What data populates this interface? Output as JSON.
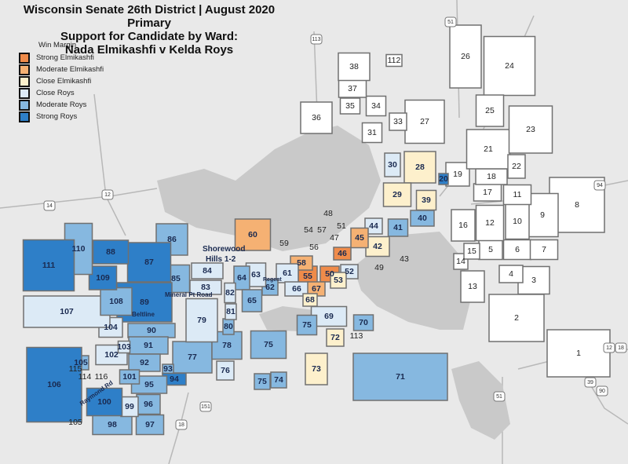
{
  "title": {
    "line1": "Wisconsin Senate 26th District | August 2020 Primary",
    "line2": "Support for Candidate by Ward:",
    "line3": "Nada Elmikashfi v Kelda Roys"
  },
  "legend": {
    "heading": "Win Margin",
    "items": [
      {
        "label": "Strong Elmikashfi",
        "key": "strong_e",
        "color": "#ef8b4a"
      },
      {
        "label": "Moderate Elmikashfi",
        "key": "moderate_e",
        "color": "#f5b173"
      },
      {
        "label": "Close Elmikashfi",
        "key": "close_e",
        "color": "#fdf0cc"
      },
      {
        "label": "Close Roys",
        "key": "close_r",
        "color": "#dceaf6"
      },
      {
        "label": "Moderate Roys",
        "key": "moderate_r",
        "color": "#86b8e0"
      },
      {
        "label": "Strong Roys",
        "key": "strong_r",
        "color": "#2e7fc8"
      }
    ]
  },
  "colors": {
    "none": "#ffffff",
    "background": "#e9e9e9",
    "water": "#c9c9c9",
    "border": "#707070"
  },
  "wards": [
    {
      "label": "1",
      "margin": "none"
    },
    {
      "label": "2",
      "margin": "none"
    },
    {
      "label": "3",
      "margin": "none"
    },
    {
      "label": "4",
      "margin": "none"
    },
    {
      "label": "5",
      "margin": "none"
    },
    {
      "label": "6",
      "margin": "none"
    },
    {
      "label": "7",
      "margin": "none"
    },
    {
      "label": "8",
      "margin": "none"
    },
    {
      "label": "9",
      "margin": "none"
    },
    {
      "label": "10",
      "margin": "none"
    },
    {
      "label": "11",
      "margin": "none"
    },
    {
      "label": "12",
      "margin": "none"
    },
    {
      "label": "13",
      "margin": "none"
    },
    {
      "label": "14",
      "margin": "none"
    },
    {
      "label": "15",
      "margin": "none"
    },
    {
      "label": "16",
      "margin": "none"
    },
    {
      "label": "17",
      "margin": "none"
    },
    {
      "label": "18",
      "margin": "none"
    },
    {
      "label": "19",
      "margin": "none"
    },
    {
      "label": "20",
      "margin": "strong_r"
    },
    {
      "label": "21",
      "margin": "none"
    },
    {
      "label": "22",
      "margin": "none"
    },
    {
      "label": "23",
      "margin": "none"
    },
    {
      "label": "24",
      "margin": "none"
    },
    {
      "label": "25",
      "margin": "none"
    },
    {
      "label": "26",
      "margin": "none"
    },
    {
      "label": "27",
      "margin": "none"
    },
    {
      "label": "28",
      "margin": "close_e"
    },
    {
      "label": "29",
      "margin": "close_e"
    },
    {
      "label": "30",
      "margin": "close_r"
    },
    {
      "label": "31",
      "margin": "none"
    },
    {
      "label": "33",
      "margin": "none"
    },
    {
      "label": "34",
      "margin": "none"
    },
    {
      "label": "35",
      "margin": "none"
    },
    {
      "label": "36",
      "margin": "none"
    },
    {
      "label": "37",
      "margin": "none"
    },
    {
      "label": "38",
      "margin": "none"
    },
    {
      "label": "39",
      "margin": "close_e"
    },
    {
      "label": "40",
      "margin": "moderate_r"
    },
    {
      "label": "41",
      "margin": "moderate_r"
    },
    {
      "label": "42",
      "margin": "close_e"
    },
    {
      "label": "43",
      "margin": "none"
    },
    {
      "label": "44",
      "margin": "close_r"
    },
    {
      "label": "45",
      "margin": "moderate_e"
    },
    {
      "label": "46",
      "margin": "strong_e"
    },
    {
      "label": "47",
      "margin": "none"
    },
    {
      "label": "48",
      "margin": "none"
    },
    {
      "label": "49",
      "margin": "none"
    },
    {
      "label": "50",
      "margin": "strong_e"
    },
    {
      "label": "51",
      "margin": "none"
    },
    {
      "label": "52",
      "margin": "close_r"
    },
    {
      "label": "53",
      "margin": "close_e"
    },
    {
      "label": "54",
      "margin": "none"
    },
    {
      "label": "55",
      "margin": "strong_e"
    },
    {
      "label": "56",
      "margin": "none"
    },
    {
      "label": "57",
      "margin": "none"
    },
    {
      "label": "58",
      "margin": "moderate_e"
    },
    {
      "label": "59",
      "margin": "none"
    },
    {
      "label": "60",
      "margin": "moderate_e"
    },
    {
      "label": "61",
      "margin": "close_r"
    },
    {
      "label": "62",
      "margin": "moderate_r"
    },
    {
      "label": "63",
      "margin": "close_r"
    },
    {
      "label": "64",
      "margin": "moderate_r"
    },
    {
      "label": "65",
      "margin": "moderate_r"
    },
    {
      "label": "66",
      "margin": "close_r"
    },
    {
      "label": "67",
      "margin": "moderate_e"
    },
    {
      "label": "68",
      "margin": "close_e"
    },
    {
      "label": "69",
      "margin": "close_r"
    },
    {
      "label": "70",
      "margin": "moderate_r"
    },
    {
      "label": "71",
      "margin": "moderate_r"
    },
    {
      "label": "72",
      "margin": "close_e"
    },
    {
      "label": "73",
      "margin": "close_e"
    },
    {
      "label": "74",
      "margin": "moderate_r"
    },
    {
      "label": "75",
      "margin": "moderate_r"
    },
    {
      "label": "75",
      "margin": "moderate_r"
    },
    {
      "label": "75",
      "margin": "moderate_r"
    },
    {
      "label": "76",
      "margin": "close_r"
    },
    {
      "label": "77",
      "margin": "moderate_r"
    },
    {
      "label": "78",
      "margin": "moderate_r"
    },
    {
      "label": "79",
      "margin": "close_r"
    },
    {
      "label": "80",
      "margin": "moderate_r"
    },
    {
      "label": "81",
      "margin": "close_r"
    },
    {
      "label": "82",
      "margin": "close_r"
    },
    {
      "label": "83",
      "margin": "close_r"
    },
    {
      "label": "84",
      "margin": "close_r"
    },
    {
      "label": "85",
      "margin": "moderate_r"
    },
    {
      "label": "86",
      "margin": "moderate_r"
    },
    {
      "label": "87",
      "margin": "strong_r"
    },
    {
      "label": "88",
      "margin": "strong_r"
    },
    {
      "label": "89",
      "margin": "strong_r"
    },
    {
      "label": "90",
      "margin": "moderate_r"
    },
    {
      "label": "91",
      "margin": "moderate_r"
    },
    {
      "label": "92",
      "margin": "moderate_r"
    },
    {
      "label": "93",
      "margin": "moderate_r"
    },
    {
      "label": "94",
      "margin": "strong_r"
    },
    {
      "label": "95",
      "margin": "moderate_r"
    },
    {
      "label": "96",
      "margin": "moderate_r"
    },
    {
      "label": "97",
      "margin": "moderate_r"
    },
    {
      "label": "98",
      "margin": "moderate_r"
    },
    {
      "label": "99",
      "margin": "close_r"
    },
    {
      "label": "100",
      "margin": "strong_r"
    },
    {
      "label": "101",
      "margin": "moderate_r"
    },
    {
      "label": "102",
      "margin": "close_r"
    },
    {
      "label": "103",
      "margin": "close_r"
    },
    {
      "label": "104",
      "margin": "close_r"
    },
    {
      "label": "105",
      "margin": "moderate_r"
    },
    {
      "label": "105",
      "margin": "none"
    },
    {
      "label": "106",
      "margin": "strong_r"
    },
    {
      "label": "107",
      "margin": "close_r"
    },
    {
      "label": "108",
      "margin": "moderate_r"
    },
    {
      "label": "109",
      "margin": "strong_r"
    },
    {
      "label": "110",
      "margin": "moderate_r"
    },
    {
      "label": "111",
      "margin": "strong_r"
    },
    {
      "label": "112",
      "margin": "none"
    },
    {
      "label": "113",
      "margin": "none"
    },
    {
      "label": "114",
      "margin": "none"
    },
    {
      "label": "115",
      "margin": "none"
    },
    {
      "label": "116",
      "margin": "none"
    }
  ],
  "streets": {
    "shorewood1": "Shorewood",
    "shorewood2": "Hills 1-2",
    "regent": "Regent",
    "mineral": "Mineral Pt Road",
    "beltline": "Beltline",
    "raymond": "Raymond Rd"
  },
  "highways": [
    "113",
    "51",
    "12",
    "14",
    "151",
    "18",
    "94",
    "12",
    "18",
    "39",
    "90",
    "51"
  ]
}
